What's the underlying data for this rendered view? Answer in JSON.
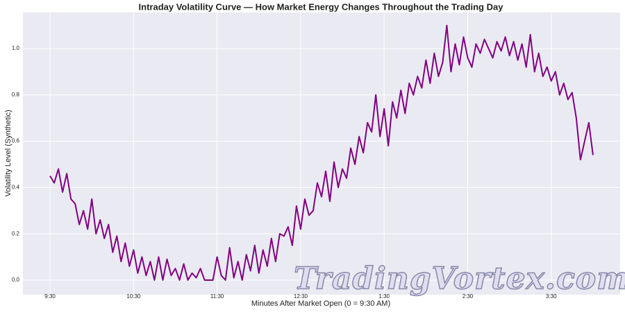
{
  "chart_data": {
    "type": "line",
    "title": "Intraday Volatility Curve — How Market Energy Changes Throughout the Trading Day",
    "xlabel": "Minutes After Market Open (0 = 9:30 AM)",
    "ylabel": "Volatility Level (Synthetic)",
    "watermark": "TradingVortex.com",
    "grid": true,
    "xlim": [
      -19.5,
      409.5
    ],
    "ylim": [
      -0.063,
      1.156
    ],
    "xticks": [
      {
        "value": 0,
        "label": "9:30"
      },
      {
        "value": 60,
        "label": "10:30"
      },
      {
        "value": 120,
        "label": "11:30"
      },
      {
        "value": 180,
        "label": "12:30"
      },
      {
        "value": 240,
        "label": "1:30"
      },
      {
        "value": 300,
        "label": "2:30"
      },
      {
        "value": 360,
        "label": "3:30"
      }
    ],
    "yticks": [
      {
        "value": 0,
        "label": "0.0"
      },
      0.2,
      0.4,
      0.6,
      0.8,
      {
        "value": 1,
        "label": "1.0"
      }
    ],
    "x": [
      0,
      3,
      6,
      9,
      12,
      15,
      18,
      21,
      24,
      27,
      30,
      33,
      36,
      39,
      42,
      45,
      48,
      51,
      54,
      57,
      60,
      63,
      66,
      69,
      72,
      75,
      78,
      81,
      84,
      87,
      90,
      93,
      96,
      99,
      102,
      105,
      108,
      111,
      114,
      117,
      120,
      123,
      126,
      129,
      132,
      135,
      138,
      141,
      144,
      147,
      150,
      153,
      156,
      159,
      162,
      165,
      168,
      171,
      174,
      177,
      180,
      183,
      186,
      189,
      192,
      195,
      198,
      201,
      204,
      207,
      210,
      213,
      216,
      219,
      222,
      225,
      228,
      231,
      234,
      237,
      240,
      243,
      246,
      249,
      252,
      255,
      258,
      261,
      264,
      267,
      270,
      273,
      276,
      279,
      282,
      285,
      288,
      291,
      294,
      297,
      300,
      303,
      306,
      309,
      312,
      315,
      318,
      321,
      324,
      327,
      330,
      333,
      336,
      339,
      342,
      345,
      348,
      351,
      354,
      357,
      360,
      363,
      366,
      369,
      372,
      375,
      378,
      381,
      384,
      387,
      390
    ],
    "series": [
      {
        "name": "Volatility",
        "color": "#800080",
        "values": [
          0.45,
          0.42,
          0.48,
          0.38,
          0.46,
          0.35,
          0.33,
          0.24,
          0.3,
          0.22,
          0.35,
          0.2,
          0.26,
          0.18,
          0.24,
          0.12,
          0.19,
          0.08,
          0.16,
          0.06,
          0.13,
          0.03,
          0.1,
          0.02,
          0.08,
          0.0,
          0.1,
          0.0,
          0.09,
          0.02,
          0.05,
          0.0,
          0.07,
          0.0,
          0.03,
          0.01,
          0.05,
          0.0,
          0.0,
          0.0,
          0.1,
          0.02,
          0.0,
          0.14,
          0.01,
          0.08,
          0.0,
          0.11,
          0.04,
          0.15,
          0.03,
          0.13,
          0.06,
          0.18,
          0.08,
          0.2,
          0.19,
          0.23,
          0.15,
          0.32,
          0.22,
          0.35,
          0.28,
          0.3,
          0.42,
          0.36,
          0.47,
          0.34,
          0.51,
          0.4,
          0.48,
          0.44,
          0.57,
          0.5,
          0.62,
          0.55,
          0.68,
          0.64,
          0.8,
          0.62,
          0.74,
          0.58,
          0.77,
          0.7,
          0.82,
          0.72,
          0.85,
          0.8,
          0.88,
          0.83,
          0.95,
          0.85,
          0.98,
          0.88,
          0.94,
          1.1,
          0.9,
          1.02,
          0.93,
          1.05,
          0.96,
          0.92,
          1.02,
          0.98,
          1.04,
          1.0,
          0.96,
          1.03,
          0.99,
          1.05,
          0.97,
          1.03,
          0.95,
          1.02,
          0.92,
          1.06,
          0.9,
          0.98,
          0.88,
          0.92,
          0.86,
          0.9,
          0.8,
          0.85,
          0.78,
          0.81,
          0.7,
          0.52,
          0.6,
          0.68,
          0.54
        ]
      }
    ]
  }
}
